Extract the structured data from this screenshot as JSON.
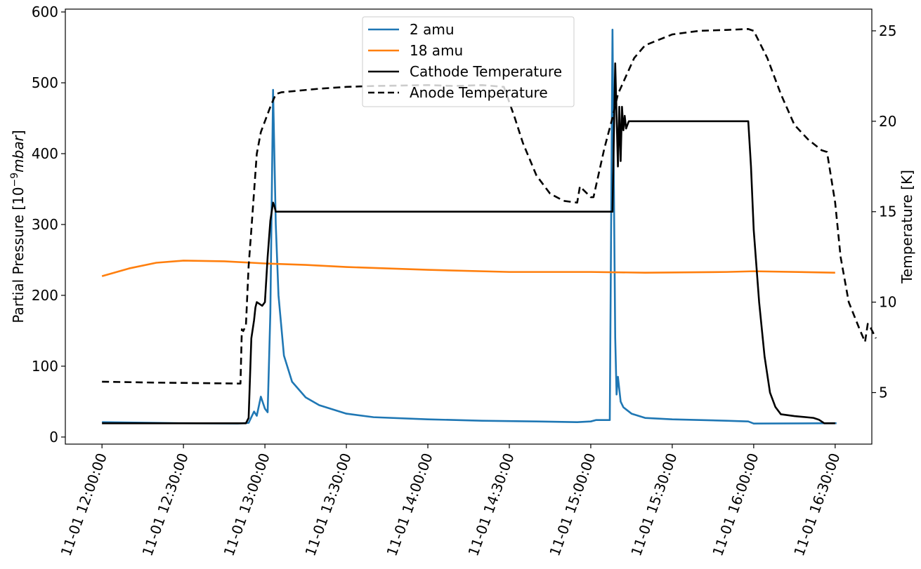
{
  "chart_data": {
    "type": "line",
    "title": "",
    "xlabel": "",
    "ylabel_left_prefix": "Partial Pressure [10",
    "ylabel_left_exp": "−9",
    "ylabel_left_unit": "mbar",
    "ylabel_left_suffix": "]",
    "ylabel_right": "Temperature [K]",
    "x_ticks": [
      "11-01 12:00:00",
      "11-01 12:30:00",
      "11-01 13:00:00",
      "11-01 13:30:00",
      "11-01 14:00:00",
      "11-01 14:30:00",
      "11-01 15:00:00",
      "11-01 15:30:00",
      "11-01 16:00:00",
      "11-01 16:30:00"
    ],
    "xlim_minutes": [
      -13.5,
      283.5
    ],
    "y_left_ticks": [
      "0",
      "100",
      "200",
      "300",
      "400",
      "500",
      "600"
    ],
    "ylim_left": [
      -10,
      604
    ],
    "y_right_ticks": [
      "5",
      "10",
      "15",
      "20",
      "25"
    ],
    "ylim_right": [
      2.15,
      26.2
    ],
    "grid": false,
    "legend_position": "upper center",
    "colors": {
      "amu2": "#1f77b4",
      "amu18": "#ff7f0e",
      "cathode": "#000000",
      "anode": "#000000"
    },
    "series": [
      {
        "name": "2 amu",
        "axis": "left",
        "style": "solid",
        "points": [
          [
            0,
            21
          ],
          [
            30,
            19.5
          ],
          [
            50,
            19
          ],
          [
            54,
            20
          ],
          [
            56,
            36
          ],
          [
            57,
            30
          ],
          [
            58.5,
            57
          ],
          [
            60,
            40
          ],
          [
            61,
            35
          ],
          [
            62,
            175
          ],
          [
            63,
            490
          ],
          [
            64,
            300
          ],
          [
            65,
            200
          ],
          [
            67,
            115
          ],
          [
            70,
            78
          ],
          [
            75,
            56
          ],
          [
            80,
            45
          ],
          [
            90,
            33
          ],
          [
            100,
            28
          ],
          [
            120,
            25
          ],
          [
            140,
            23
          ],
          [
            160,
            22
          ],
          [
            175,
            21
          ],
          [
            180,
            22
          ],
          [
            182,
            24
          ],
          [
            187,
            24
          ],
          [
            188,
            575
          ],
          [
            189,
            140
          ],
          [
            189.5,
            60
          ],
          [
            190,
            85
          ],
          [
            191,
            50
          ],
          [
            192,
            42
          ],
          [
            195,
            33
          ],
          [
            200,
            27
          ],
          [
            210,
            25
          ],
          [
            230,
            23
          ],
          [
            238,
            22
          ],
          [
            240,
            19
          ],
          [
            270,
            19.5
          ],
          [
            270.5,
            19.5
          ]
        ]
      },
      {
        "name": "18 amu",
        "axis": "left",
        "style": "solid",
        "points": [
          [
            0,
            227
          ],
          [
            10,
            238
          ],
          [
            20,
            246
          ],
          [
            30,
            249
          ],
          [
            45,
            248
          ],
          [
            60,
            245
          ],
          [
            75,
            243
          ],
          [
            90,
            240
          ],
          [
            105,
            238
          ],
          [
            120,
            236
          ],
          [
            150,
            233
          ],
          [
            180,
            233
          ],
          [
            200,
            232
          ],
          [
            230,
            233
          ],
          [
            240,
            234
          ],
          [
            270,
            232
          ]
        ]
      },
      {
        "name": "Cathode Temperature",
        "axis": "right",
        "style": "solid",
        "points": [
          [
            0,
            3.3
          ],
          [
            40,
            3.3
          ],
          [
            53,
            3.3
          ],
          [
            54,
            3.6
          ],
          [
            55,
            8.0
          ],
          [
            56,
            9.0
          ],
          [
            56.5,
            9.7
          ],
          [
            57,
            10.0
          ],
          [
            58,
            9.9
          ],
          [
            59,
            9.8
          ],
          [
            60,
            10.0
          ],
          [
            61,
            12.5
          ],
          [
            62,
            14.5
          ],
          [
            63,
            15.5
          ],
          [
            63.5,
            15.3
          ],
          [
            64,
            15.0
          ],
          [
            100,
            15.0
          ],
          [
            150,
            15.0
          ],
          [
            188,
            15.0
          ],
          [
            189,
            23.2
          ],
          [
            190,
            17.5
          ],
          [
            190.5,
            20.8
          ],
          [
            191,
            17.8
          ],
          [
            191.5,
            20.8
          ],
          [
            192,
            19.5
          ],
          [
            192.5,
            20.3
          ],
          [
            193,
            19.6
          ],
          [
            194,
            20.0
          ],
          [
            237,
            20.0
          ],
          [
            238,
            20.0
          ],
          [
            239,
            17.5
          ],
          [
            240,
            14.0
          ],
          [
            242,
            10.0
          ],
          [
            244,
            7.0
          ],
          [
            246,
            5.0
          ],
          [
            248,
            4.2
          ],
          [
            250,
            3.8
          ],
          [
            255,
            3.7
          ],
          [
            262,
            3.6
          ],
          [
            264,
            3.5
          ],
          [
            266,
            3.3
          ],
          [
            270,
            3.3
          ]
        ]
      },
      {
        "name": "Anode Temperature",
        "axis": "right",
        "style": "dashed",
        "points": [
          [
            0,
            5.6
          ],
          [
            20,
            5.55
          ],
          [
            50,
            5.5
          ],
          [
            51,
            5.5
          ],
          [
            51.5,
            8.5
          ],
          [
            52,
            8.4
          ],
          [
            53,
            8.7
          ],
          [
            54,
            12
          ],
          [
            55,
            14
          ],
          [
            57,
            18.2
          ],
          [
            58.5,
            19.4
          ],
          [
            60,
            20.0
          ],
          [
            62,
            20.8
          ],
          [
            64,
            21.5
          ],
          [
            66,
            21.6
          ],
          [
            80,
            21.8
          ],
          [
            90,
            21.9
          ],
          [
            100,
            21.95
          ],
          [
            120,
            22.0
          ],
          [
            130,
            21.95
          ],
          [
            140,
            22.0
          ],
          [
            148,
            21.9
          ],
          [
            152,
            20.2
          ],
          [
            155,
            18.8
          ],
          [
            160,
            17.0
          ],
          [
            165,
            16.0
          ],
          [
            170,
            15.6
          ],
          [
            175,
            15.5
          ],
          [
            176,
            16.4
          ],
          [
            180,
            15.8
          ],
          [
            181,
            15.8
          ],
          [
            185,
            18.5
          ],
          [
            188,
            20.2
          ],
          [
            190,
            21.5
          ],
          [
            193,
            22.5
          ],
          [
            196,
            23.5
          ],
          [
            200,
            24.2
          ],
          [
            210,
            24.8
          ],
          [
            220,
            25.0
          ],
          [
            230,
            25.05
          ],
          [
            238,
            25.1
          ],
          [
            240,
            25.0
          ],
          [
            245,
            23.5
          ],
          [
            250,
            21.5
          ],
          [
            255,
            19.8
          ],
          [
            260,
            19.0
          ],
          [
            265,
            18.4
          ],
          [
            267,
            18.3
          ],
          [
            270,
            15.5
          ],
          [
            272,
            12.5
          ],
          [
            275,
            10.0
          ],
          [
            279,
            8.5
          ],
          [
            281,
            7.8
          ],
          [
            282,
            8.8
          ],
          [
            283,
            8.6
          ],
          [
            285,
            8.0
          ]
        ]
      }
    ]
  }
}
